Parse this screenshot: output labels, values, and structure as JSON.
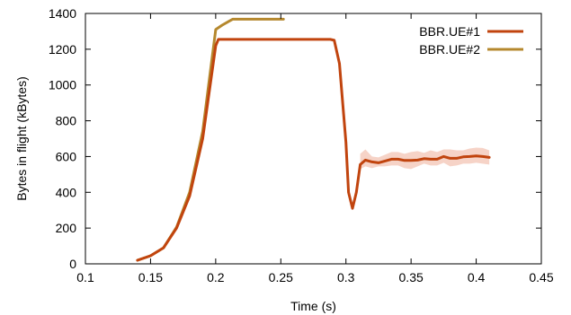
{
  "chart_data": {
    "type": "line",
    "xlabel": "Time (s)",
    "ylabel": "Bytes in flight (kBytes)",
    "xlim": [
      0.1,
      0.45
    ],
    "ylim": [
      0,
      1400
    ],
    "xticks": [
      0.1,
      0.15,
      0.2,
      0.25,
      0.3,
      0.35,
      0.4,
      0.45
    ],
    "yticks": [
      0,
      200,
      400,
      600,
      800,
      1000,
      1200,
      1400
    ],
    "xtick_labels": [
      "0.1",
      "0.15",
      "0.2",
      "0.25",
      "0.3",
      "0.35",
      "0.4",
      "0.45"
    ],
    "ytick_labels": [
      "0",
      "200",
      "400",
      "600",
      "800",
      "1000",
      "1200",
      "1400"
    ],
    "grid": false,
    "legend_position": "top-right",
    "series": [
      {
        "name": "BBR.UE#1",
        "color": "#c1440e",
        "x": [
          0.14,
          0.15,
          0.16,
          0.17,
          0.18,
          0.19,
          0.2,
          0.202,
          0.21,
          0.22,
          0.24,
          0.26,
          0.28,
          0.288,
          0.291,
          0.295,
          0.3,
          0.302,
          0.305,
          0.308,
          0.311,
          0.315,
          0.32,
          0.325,
          0.33,
          0.335,
          0.34,
          0.345,
          0.35,
          0.355,
          0.36,
          0.365,
          0.37,
          0.375,
          0.38,
          0.385,
          0.39,
          0.395,
          0.4,
          0.405,
          0.41
        ],
        "y": [
          20,
          45,
          90,
          200,
          380,
          700,
          1220,
          1255,
          1255,
          1255,
          1255,
          1255,
          1255,
          1255,
          1250,
          1120,
          680,
          400,
          310,
          400,
          555,
          580,
          570,
          565,
          575,
          585,
          585,
          578,
          578,
          580,
          588,
          585,
          585,
          600,
          590,
          590,
          598,
          600,
          603,
          600,
          595
        ],
        "band_upper": [
          0,
          0,
          0,
          0,
          0,
          0,
          0,
          0,
          0,
          0,
          0,
          0,
          0,
          0,
          0,
          0,
          0,
          0,
          0,
          0,
          615,
          640,
          600,
          595,
          610,
          625,
          625,
          615,
          625,
          630,
          620,
          635,
          625,
          640,
          640,
          635,
          635,
          645,
          650,
          648,
          635
        ],
        "band_lower": [
          0,
          0,
          0,
          0,
          0,
          0,
          0,
          0,
          0,
          0,
          0,
          0,
          0,
          0,
          0,
          0,
          0,
          0,
          0,
          0,
          530,
          545,
          535,
          545,
          545,
          550,
          550,
          535,
          530,
          545,
          560,
          550,
          550,
          565,
          545,
          550,
          560,
          560,
          565,
          560,
          555
        ]
      },
      {
        "name": "BBR.UE#2",
        "color": "#b5882e",
        "x": [
          0.14,
          0.15,
          0.16,
          0.17,
          0.18,
          0.19,
          0.2,
          0.205,
          0.213,
          0.22,
          0.23,
          0.24,
          0.252
        ],
        "y": [
          20,
          45,
          90,
          205,
          400,
          740,
          1310,
          1335,
          1368,
          1368,
          1368,
          1368,
          1368
        ]
      }
    ]
  }
}
